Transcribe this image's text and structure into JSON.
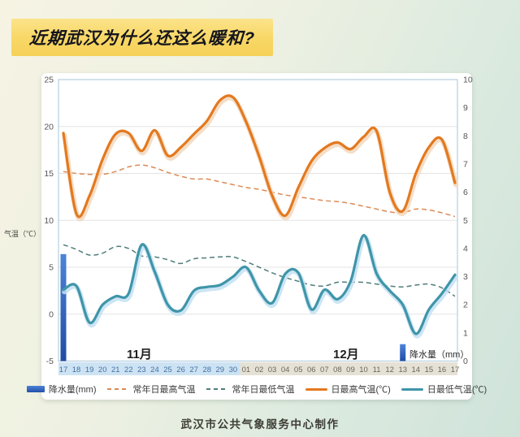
{
  "page": {
    "title": "近期武汉为什么还这么暖和?",
    "footer": "武汉市公共气象服务中心制作"
  },
  "chart": {
    "y_left_label": "气温（℃）",
    "y_right_label": "降水量（mm）",
    "month_labels": [
      "11月",
      "12月"
    ],
    "left_ticks": [
      25,
      20,
      15,
      10,
      5,
      0,
      -5
    ],
    "right_ticks": [
      10,
      9,
      8,
      7,
      6,
      5,
      4,
      3,
      2,
      1,
      0
    ]
  },
  "chart_data": {
    "type": "line+bar",
    "title": "",
    "xlabel": "",
    "ylabel_left": "气温（℃）",
    "ylabel_right": "降水量（mm）",
    "ylim_left": [
      -5,
      25
    ],
    "ylim_right": [
      0,
      10
    ],
    "grid": true,
    "legend_position": "bottom",
    "categories": [
      "17",
      "18",
      "19",
      "20",
      "21",
      "22",
      "23",
      "24",
      "25",
      "26",
      "27",
      "28",
      "29",
      "30",
      "01",
      "02",
      "03",
      "04",
      "05",
      "06",
      "07",
      "08",
      "09",
      "10",
      "11",
      "12",
      "13",
      "14",
      "15",
      "16",
      "17"
    ],
    "month_of_categories": [
      "11月: 17-30",
      "12月: 01-17"
    ],
    "series": [
      {
        "name": "降水量(mm)",
        "type": "bar",
        "axis": "right",
        "color": "#2f5fb0",
        "values": [
          3.8,
          0,
          0,
          0,
          0,
          0,
          0,
          0,
          0,
          0,
          0,
          0,
          0,
          0,
          0,
          0,
          0,
          0,
          0,
          0,
          0,
          0,
          0,
          0,
          0,
          0,
          0.6,
          0,
          0,
          0,
          0
        ]
      },
      {
        "name": "常年日最高气温",
        "type": "line-dashed",
        "axis": "left",
        "color": "#dc8a55",
        "values": [
          15.2,
          15.0,
          14.9,
          14.9,
          15.2,
          15.7,
          15.9,
          15.6,
          15.1,
          14.7,
          14.4,
          14.4,
          14.1,
          13.8,
          13.5,
          13.3,
          13.0,
          12.7,
          12.5,
          12.3,
          12.1,
          12.0,
          11.8,
          11.5,
          11.2,
          10.9,
          10.8,
          11.2,
          11.1,
          10.8,
          10.4
        ]
      },
      {
        "name": "常年日最低气温",
        "type": "line-dashed",
        "axis": "left",
        "color": "#507d7a",
        "values": [
          7.4,
          6.9,
          6.3,
          6.5,
          7.2,
          7.0,
          6.2,
          6.1,
          5.8,
          5.4,
          5.9,
          6.0,
          6.1,
          6.1,
          5.6,
          5.0,
          4.4,
          3.9,
          3.5,
          3.1,
          3.0,
          3.4,
          3.4,
          3.4,
          3.2,
          3.0,
          2.9,
          3.1,
          3.2,
          2.8,
          1.9
        ]
      },
      {
        "name": "日最高气温(℃)",
        "type": "line",
        "axis": "left",
        "color": "#e4791f",
        "values": [
          19.3,
          10.7,
          12.6,
          16.5,
          19.2,
          19.3,
          17.4,
          19.6,
          16.9,
          17.8,
          19.2,
          20.6,
          22.8,
          23.1,
          20.5,
          16.8,
          12.6,
          10.5,
          13.5,
          16.3,
          17.7,
          18.3,
          17.6,
          18.9,
          19.5,
          13.0,
          11.0,
          15.0,
          17.8,
          18.6,
          14.0
        ]
      },
      {
        "name": "日最低气温(℃)",
        "type": "line",
        "axis": "left",
        "color": "#3f95a9",
        "values": [
          2.6,
          3.0,
          -0.9,
          1.0,
          1.9,
          2.2,
          7.4,
          4.5,
          1.0,
          0.4,
          2.5,
          2.9,
          3.1,
          4.0,
          5.0,
          2.5,
          1.2,
          4.3,
          4.4,
          0.5,
          2.6,
          1.6,
          3.5,
          8.4,
          4.3,
          2.5,
          1.0,
          -2.1,
          0.5,
          2.2,
          4.2
        ]
      }
    ]
  }
}
